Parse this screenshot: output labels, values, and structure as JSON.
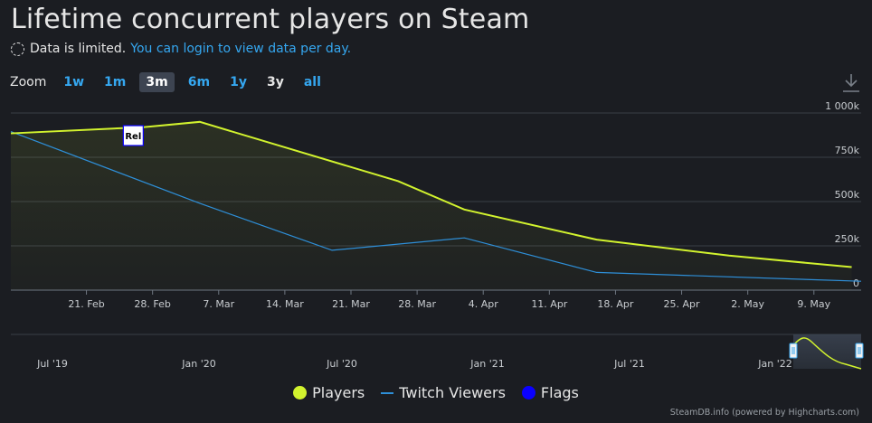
{
  "title": "Lifetime concurrent players on Steam",
  "notice": {
    "text": "Data is limited.",
    "link": "You can login to view data per day."
  },
  "zoom": {
    "label": "Zoom",
    "buttons": [
      "1w",
      "1m",
      "3m",
      "6m",
      "1y",
      "3y",
      "all"
    ],
    "active": "3m"
  },
  "chart_data": {
    "type": "line",
    "x_labels": [
      "21. Feb",
      "28. Feb",
      "7. Mar",
      "14. Mar",
      "21. Mar",
      "28. Mar",
      "4. Apr",
      "11. Apr",
      "18. Apr",
      "25. Apr",
      "2. May",
      "9. May"
    ],
    "y_ticks": [
      "0",
      "250k",
      "500k",
      "750k",
      "1 000k"
    ],
    "ylim": [
      0,
      1000000
    ],
    "series": [
      {
        "name": "Players",
        "color": "#d2f32e",
        "points": [
          [
            "2022-02-13",
            885000
          ],
          [
            "2022-02-27",
            920000
          ],
          [
            "2022-03-05",
            950000
          ],
          [
            "2022-03-26",
            615000
          ],
          [
            "2022-04-02",
            455000
          ],
          [
            "2022-04-16",
            285000
          ],
          [
            "2022-04-30",
            195000
          ],
          [
            "2022-05-13",
            130000
          ]
        ]
      },
      {
        "name": "Twitch Viewers",
        "color": "#2e8fd8",
        "points": [
          [
            "2022-02-13",
            895000
          ],
          [
            "2022-03-05",
            490000
          ],
          [
            "2022-03-19",
            225000
          ],
          [
            "2022-04-02",
            295000
          ],
          [
            "2022-04-16",
            100000
          ],
          [
            "2022-05-14",
            50000
          ]
        ]
      }
    ],
    "flags": [
      {
        "label": "Rel",
        "date": "2022-02-25"
      }
    ],
    "navigator": {
      "labels": [
        "Jul '19",
        "Jan '20",
        "Jul '20",
        "Jan '21",
        "Jul '21",
        "Jan '22"
      ]
    },
    "legend": [
      "Players",
      "Twitch Viewers",
      "Flags"
    ],
    "legend_colors": [
      "#d2f32e",
      "#2e8fd8",
      "#0a00ff"
    ]
  },
  "credits": "SteamDB.info (powered by Highcharts.com)"
}
